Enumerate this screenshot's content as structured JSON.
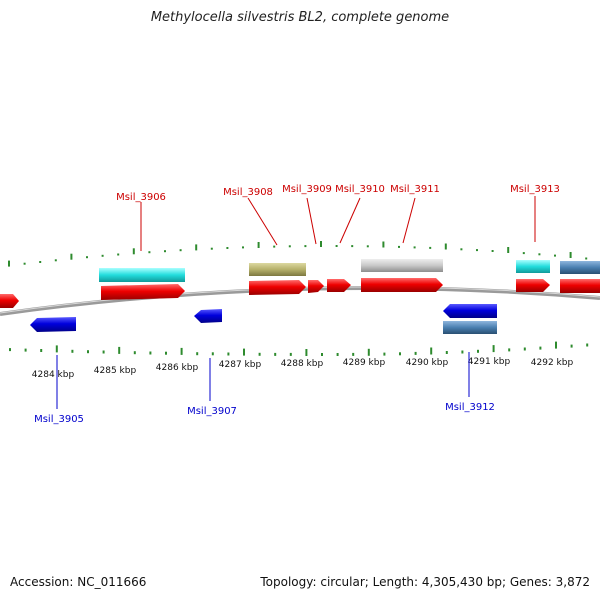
{
  "title": "Methylocella silvestris BL2, complete genome",
  "accession": "Accession: NC_011666",
  "stats": "Topology: circular; Length: 4,305,430 bp; Genes: 3,872",
  "ticks": [
    {
      "label": "4284 kbp"
    },
    {
      "label": "4285 kbp"
    },
    {
      "label": "4286 kbp"
    },
    {
      "label": "4287 kbp"
    },
    {
      "label": "4288 kbp"
    },
    {
      "label": "4289 kbp"
    },
    {
      "label": "4290 kbp"
    },
    {
      "label": "4291 kbp"
    },
    {
      "label": "4292 kbp"
    }
  ],
  "genes": [
    {
      "id": "Msil_3905",
      "strand": "reverse",
      "color": "#0000dd"
    },
    {
      "id": "Msil_3906",
      "strand": "forward",
      "color": "#ee0000"
    },
    {
      "id": "Msil_3907",
      "strand": "reverse",
      "color": "#0000dd"
    },
    {
      "id": "Msil_3908",
      "strand": "forward",
      "color": "#ee0000"
    },
    {
      "id": "Msil_3909",
      "strand": "forward",
      "color": "#ee0000"
    },
    {
      "id": "Msil_3910",
      "strand": "forward",
      "color": "#ee0000"
    },
    {
      "id": "Msil_3911",
      "strand": "forward",
      "color": "#ee0000"
    },
    {
      "id": "Msil_3912",
      "strand": "reverse",
      "color": "#0000dd"
    },
    {
      "id": "Msil_3913",
      "strand": "forward",
      "color": "#ee0000"
    }
  ],
  "colors": {
    "forward_label": "#cc0000",
    "reverse_label": "#0000cc",
    "backbone": "#8a8a8a",
    "tick": "#2e8b2e",
    "cyan_feature": "#22dddd",
    "olive_feature": "#b5b06a",
    "gray_feature": "#c8c8c8",
    "steel_feature": "#4a7fb0"
  }
}
